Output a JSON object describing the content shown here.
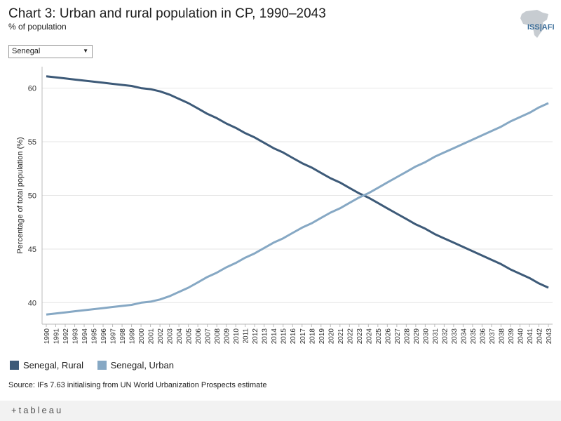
{
  "header": {
    "title": "Chart 3: Urban and rural population in CP, 1990–2043",
    "subtitle": "% of population"
  },
  "logo": {
    "text": "ISS|AFI",
    "icon": "africa-map-icon"
  },
  "filter": {
    "selected": "Senegal"
  },
  "chart_data": {
    "type": "line",
    "title": "Chart 3: Urban and rural population in CP, 1990–2043",
    "ylabel": "Percentage of total population (%)",
    "xlabel": "",
    "ylim": [
      38,
      62
    ],
    "yticks": [
      40,
      45,
      50,
      55,
      60
    ],
    "grid": true,
    "x": [
      1990,
      1991,
      1992,
      1993,
      1994,
      1995,
      1996,
      1997,
      1998,
      1999,
      2000,
      2001,
      2002,
      2003,
      2004,
      2005,
      2006,
      2007,
      2008,
      2009,
      2010,
      2011,
      2012,
      2013,
      2014,
      2015,
      2016,
      2017,
      2018,
      2019,
      2020,
      2021,
      2022,
      2023,
      2024,
      2025,
      2026,
      2027,
      2028,
      2029,
      2030,
      2031,
      2032,
      2033,
      2034,
      2035,
      2036,
      2037,
      2038,
      2039,
      2040,
      2041,
      2042,
      2043
    ],
    "series": [
      {
        "name": "Senegal, Rural",
        "color": "#3d5a78",
        "values": [
          61.1,
          61.0,
          60.9,
          60.8,
          60.7,
          60.6,
          60.5,
          60.4,
          60.3,
          60.2,
          60.0,
          59.9,
          59.7,
          59.4,
          59.0,
          58.6,
          58.1,
          57.6,
          57.2,
          56.7,
          56.3,
          55.8,
          55.4,
          54.9,
          54.4,
          54.0,
          53.5,
          53.0,
          52.6,
          52.1,
          51.6,
          51.2,
          50.7,
          50.2,
          49.8,
          49.3,
          48.8,
          48.3,
          47.8,
          47.3,
          46.9,
          46.4,
          46.0,
          45.6,
          45.2,
          44.8,
          44.4,
          44.0,
          43.6,
          43.1,
          42.7,
          42.3,
          41.8,
          41.4
        ]
      },
      {
        "name": "Senegal, Urban",
        "color": "#86a8c4",
        "values": [
          38.9,
          39.0,
          39.1,
          39.2,
          39.3,
          39.4,
          39.5,
          39.6,
          39.7,
          39.8,
          40.0,
          40.1,
          40.3,
          40.6,
          41.0,
          41.4,
          41.9,
          42.4,
          42.8,
          43.3,
          43.7,
          44.2,
          44.6,
          45.1,
          45.6,
          46.0,
          46.5,
          47.0,
          47.4,
          47.9,
          48.4,
          48.8,
          49.3,
          49.8,
          50.2,
          50.7,
          51.2,
          51.7,
          52.2,
          52.7,
          53.1,
          53.6,
          54.0,
          54.4,
          54.8,
          55.2,
          55.6,
          56.0,
          56.4,
          56.9,
          57.3,
          57.7,
          58.2,
          58.6
        ]
      }
    ]
  },
  "source": "Source: IFs 7.63 initialising from UN World Urbanization Prospects estimate",
  "footer": {
    "brand": "+tableau"
  }
}
